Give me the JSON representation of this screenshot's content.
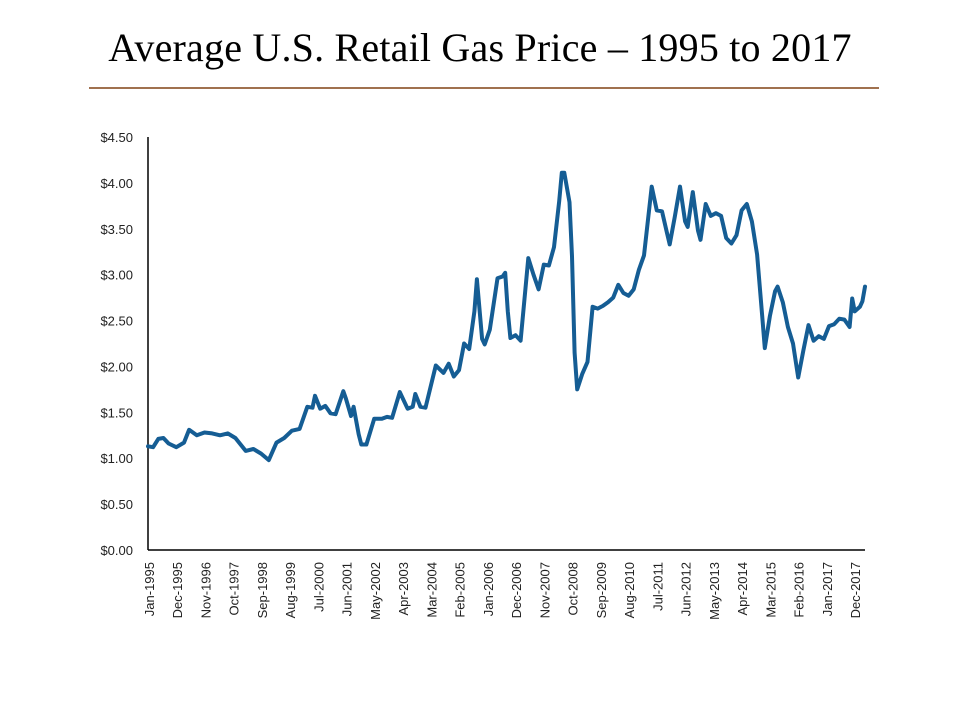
{
  "title": "Average U.S. Retail Gas Price – 1995 to 2017",
  "colors": {
    "line": "#155d94",
    "rule": "#a0714f",
    "axis": "#000000"
  },
  "chart_data": {
    "type": "line",
    "title": "Average U.S. Retail Gas Price – 1995 to 2017",
    "xlabel": "",
    "ylabel": "",
    "ylim": [
      0,
      4.5
    ],
    "grid": false,
    "legend": "none",
    "y_tick_labels": [
      "$0.00",
      "$0.50",
      "$1.00",
      "$1.50",
      "$2.00",
      "$2.50",
      "$3.00",
      "$3.50",
      "$4.00",
      "$4.50"
    ],
    "y_ticks": [
      0,
      0.5,
      1.0,
      1.5,
      2.0,
      2.5,
      3.0,
      3.5,
      4.0,
      4.5
    ],
    "x_tick_labels": [
      "Jan-1995",
      "Dec-1995",
      "Nov-1996",
      "Oct-1997",
      "Sep-1998",
      "Aug-1999",
      "Jul-2000",
      "Jun-2001",
      "May-2002",
      "Apr-2003",
      "Mar-2004",
      "Feb-2005",
      "Jan-2006",
      "Dec-2006",
      "Nov-2007",
      "Oct-2008",
      "Sep-2009",
      "Aug-2010",
      "Jul-2011",
      "Jun-2012",
      "May-2013",
      "Apr-2014",
      "Mar-2015",
      "Feb-2016",
      "Jan-2017",
      "Dec-2017"
    ],
    "x_range": [
      "1995-01",
      "2018-04"
    ],
    "series": [
      {
        "points": [
          [
            "1995-01",
            1.13
          ],
          [
            "1995-03",
            1.12
          ],
          [
            "1995-05",
            1.21
          ],
          [
            "1995-07",
            1.22
          ],
          [
            "1995-09",
            1.16
          ],
          [
            "1995-12",
            1.12
          ],
          [
            "1996-03",
            1.17
          ],
          [
            "1996-05",
            1.31
          ],
          [
            "1996-08",
            1.25
          ],
          [
            "1996-11",
            1.28
          ],
          [
            "1997-02",
            1.27
          ],
          [
            "1997-05",
            1.25
          ],
          [
            "1997-08",
            1.27
          ],
          [
            "1997-11",
            1.22
          ],
          [
            "1998-03",
            1.08
          ],
          [
            "1998-06",
            1.1
          ],
          [
            "1998-09",
            1.05
          ],
          [
            "1998-12",
            0.98
          ],
          [
            "1999-03",
            1.17
          ],
          [
            "1999-06",
            1.22
          ],
          [
            "1999-09",
            1.3
          ],
          [
            "1999-12",
            1.32
          ],
          [
            "2000-03",
            1.56
          ],
          [
            "2000-05",
            1.55
          ],
          [
            "2000-06",
            1.68
          ],
          [
            "2000-08",
            1.54
          ],
          [
            "2000-10",
            1.57
          ],
          [
            "2000-12",
            1.49
          ],
          [
            "2001-02",
            1.48
          ],
          [
            "2001-05",
            1.73
          ],
          [
            "2001-06",
            1.65
          ],
          [
            "2001-08",
            1.46
          ],
          [
            "2001-09",
            1.56
          ],
          [
            "2001-11",
            1.26
          ],
          [
            "2001-12",
            1.15
          ],
          [
            "2002-02",
            1.15
          ],
          [
            "2002-05",
            1.43
          ],
          [
            "2002-08",
            1.43
          ],
          [
            "2002-10",
            1.45
          ],
          [
            "2002-12",
            1.44
          ],
          [
            "2003-03",
            1.72
          ],
          [
            "2003-06",
            1.54
          ],
          [
            "2003-08",
            1.56
          ],
          [
            "2003-09",
            1.7
          ],
          [
            "2003-11",
            1.56
          ],
          [
            "2004-01",
            1.55
          ],
          [
            "2004-05",
            2.01
          ],
          [
            "2004-08",
            1.93
          ],
          [
            "2004-10",
            2.03
          ],
          [
            "2004-12",
            1.89
          ],
          [
            "2005-02",
            1.96
          ],
          [
            "2005-04",
            2.25
          ],
          [
            "2005-06",
            2.19
          ],
          [
            "2005-08",
            2.6
          ],
          [
            "2005-09",
            2.95
          ],
          [
            "2005-11",
            2.3
          ],
          [
            "2005-12",
            2.24
          ],
          [
            "2006-02",
            2.4
          ],
          [
            "2006-05",
            2.96
          ],
          [
            "2006-07",
            2.98
          ],
          [
            "2006-08",
            3.02
          ],
          [
            "2006-09",
            2.6
          ],
          [
            "2006-10",
            2.31
          ],
          [
            "2006-12",
            2.34
          ],
          [
            "2007-02",
            2.28
          ],
          [
            "2007-05",
            3.18
          ],
          [
            "2007-07",
            3.0
          ],
          [
            "2007-09",
            2.84
          ],
          [
            "2007-11",
            3.11
          ],
          [
            "2008-01",
            3.1
          ],
          [
            "2008-03",
            3.3
          ],
          [
            "2008-05",
            3.8
          ],
          [
            "2008-06",
            4.11
          ],
          [
            "2008-07",
            4.11
          ],
          [
            "2008-09",
            3.79
          ],
          [
            "2008-10",
            3.2
          ],
          [
            "2008-11",
            2.15
          ],
          [
            "2008-12",
            1.75
          ],
          [
            "2009-02",
            1.92
          ],
          [
            "2009-04",
            2.05
          ],
          [
            "2009-06",
            2.65
          ],
          [
            "2009-08",
            2.63
          ],
          [
            "2009-10",
            2.66
          ],
          [
            "2009-12",
            2.7
          ],
          [
            "2010-02",
            2.75
          ],
          [
            "2010-04",
            2.89
          ],
          [
            "2010-06",
            2.8
          ],
          [
            "2010-08",
            2.77
          ],
          [
            "2010-10",
            2.84
          ],
          [
            "2010-12",
            3.05
          ],
          [
            "2011-02",
            3.21
          ],
          [
            "2011-05",
            3.96
          ],
          [
            "2011-07",
            3.7
          ],
          [
            "2011-09",
            3.69
          ],
          [
            "2011-11",
            3.45
          ],
          [
            "2011-12",
            3.33
          ],
          [
            "2012-02",
            3.63
          ],
          [
            "2012-04",
            3.96
          ],
          [
            "2012-06",
            3.58
          ],
          [
            "2012-07",
            3.52
          ],
          [
            "2012-09",
            3.9
          ],
          [
            "2012-11",
            3.48
          ],
          [
            "2012-12",
            3.38
          ],
          [
            "2013-02",
            3.77
          ],
          [
            "2013-04",
            3.64
          ],
          [
            "2013-06",
            3.67
          ],
          [
            "2013-08",
            3.64
          ],
          [
            "2013-10",
            3.4
          ],
          [
            "2013-12",
            3.34
          ],
          [
            "2014-02",
            3.43
          ],
          [
            "2014-04",
            3.7
          ],
          [
            "2014-06",
            3.77
          ],
          [
            "2014-08",
            3.58
          ],
          [
            "2014-10",
            3.22
          ],
          [
            "2014-12",
            2.55
          ],
          [
            "2015-01",
            2.2
          ],
          [
            "2015-03",
            2.55
          ],
          [
            "2015-05",
            2.82
          ],
          [
            "2015-06",
            2.87
          ],
          [
            "2015-08",
            2.7
          ],
          [
            "2015-10",
            2.43
          ],
          [
            "2015-12",
            2.25
          ],
          [
            "2016-02",
            1.88
          ],
          [
            "2016-04",
            2.17
          ],
          [
            "2016-06",
            2.45
          ],
          [
            "2016-08",
            2.28
          ],
          [
            "2016-10",
            2.33
          ],
          [
            "2016-12",
            2.3
          ],
          [
            "2017-02",
            2.44
          ],
          [
            "2017-04",
            2.46
          ],
          [
            "2017-06",
            2.52
          ],
          [
            "2017-08",
            2.51
          ],
          [
            "2017-10",
            2.43
          ],
          [
            "2017-11",
            2.74
          ],
          [
            "2017-12",
            2.6
          ],
          [
            "2018-02",
            2.65
          ],
          [
            "2018-03",
            2.71
          ],
          [
            "2018-04",
            2.87
          ]
        ]
      }
    ]
  }
}
